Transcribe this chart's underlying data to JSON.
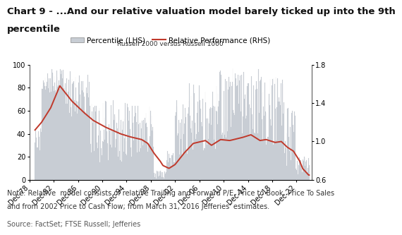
{
  "title_line1": "Chart 9 - ...And our relative valuation model barely ticked up into the 9th",
  "title_line2": "percentile",
  "subtitle": "Russell 2000 versus Russell 1000",
  "note_line1": "Note: Relative  model consists of relative Trailing and Forward P/E, Price to Book, Price To Sales",
  "note_line2": "and from 2002 Price to Cash Flow; from March 31, 2016 Jefferies' estimates.",
  "source": "Source: FactSet; FTSE Russell; Jefferies",
  "legend_bar": "Percentile (LHS)",
  "legend_line": "Relative Performance (RHS)",
  "xlim_start": 1978.75,
  "xlim_end": 2024.5,
  "ylim_left": [
    0,
    100
  ],
  "ylim_right": [
    0.6,
    1.8
  ],
  "yticks_left": [
    0,
    20,
    40,
    60,
    80,
    100
  ],
  "yticks_right": [
    0.6,
    1.0,
    1.4,
    1.8
  ],
  "xtick_years": [
    1978,
    1982,
    1986,
    1990,
    1994,
    1998,
    2002,
    2006,
    2010,
    2014,
    2018,
    2022
  ],
  "bar_color": "#c8cdd4",
  "line_color": "#c0392b",
  "background_color": "#ffffff",
  "title_fontsize": 9.5,
  "axis_fontsize": 7,
  "note_fontsize": 7,
  "legend_fontsize": 7.5
}
